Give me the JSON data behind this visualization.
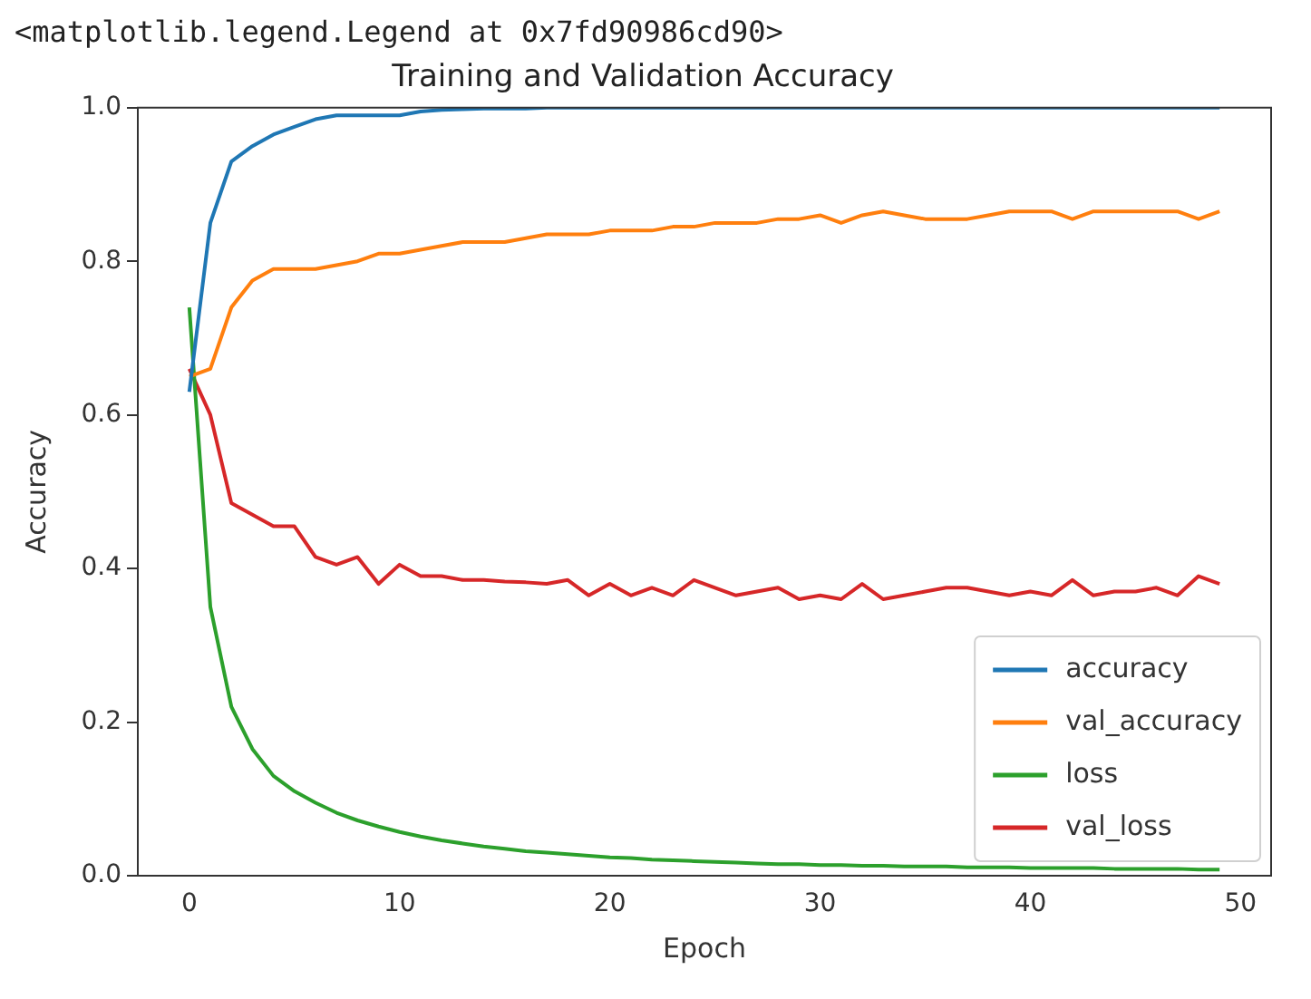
{
  "chart_data": {
    "type": "line",
    "title": "Training and Validation Accuracy",
    "xlabel": "Epoch",
    "ylabel": "Accuracy",
    "annotations": [
      "<matplotlib.legend.Legend at 0x7fd90986cd90>"
    ],
    "x": [
      0,
      1,
      2,
      3,
      4,
      5,
      6,
      7,
      8,
      9,
      10,
      11,
      12,
      13,
      14,
      15,
      16,
      17,
      18,
      19,
      20,
      21,
      22,
      23,
      24,
      25,
      26,
      27,
      28,
      29,
      30,
      31,
      32,
      33,
      34,
      35,
      36,
      37,
      38,
      39,
      40,
      41,
      42,
      43,
      44,
      45,
      46,
      47,
      48,
      49
    ],
    "series": [
      {
        "name": "accuracy",
        "color": "#1f77b4",
        "values": [
          0.63,
          0.85,
          0.93,
          0.95,
          0.965,
          0.975,
          0.985,
          0.99,
          0.99,
          0.99,
          0.99,
          0.995,
          0.997,
          0.998,
          0.999,
          0.999,
          0.999,
          1.0,
          1.0,
          1.0,
          1.0,
          1.0,
          1.0,
          1.0,
          1.0,
          1.0,
          1.0,
          1.0,
          1.0,
          1.0,
          1.0,
          1.0,
          1.0,
          1.0,
          1.0,
          1.0,
          1.0,
          1.0,
          1.0,
          1.0,
          1.0,
          1.0,
          1.0,
          1.0,
          1.0,
          1.0,
          1.0,
          1.0,
          1.0,
          1.0
        ]
      },
      {
        "name": "val_accuracy",
        "color": "#ff7f0e",
        "values": [
          0.65,
          0.66,
          0.74,
          0.775,
          0.79,
          0.79,
          0.79,
          0.795,
          0.8,
          0.81,
          0.81,
          0.815,
          0.82,
          0.825,
          0.825,
          0.825,
          0.83,
          0.835,
          0.835,
          0.835,
          0.84,
          0.84,
          0.84,
          0.845,
          0.845,
          0.85,
          0.85,
          0.85,
          0.855,
          0.855,
          0.86,
          0.85,
          0.86,
          0.865,
          0.86,
          0.855,
          0.855,
          0.855,
          0.86,
          0.865,
          0.865,
          0.865,
          0.855,
          0.865,
          0.865,
          0.865,
          0.865,
          0.865,
          0.855,
          0.865
        ]
      },
      {
        "name": "loss",
        "color": "#2ca02c",
        "values": [
          0.74,
          0.35,
          0.22,
          0.165,
          0.13,
          0.11,
          0.095,
          0.082,
          0.072,
          0.064,
          0.057,
          0.051,
          0.046,
          0.042,
          0.038,
          0.035,
          0.032,
          0.03,
          0.028,
          0.026,
          0.024,
          0.023,
          0.021,
          0.02,
          0.019,
          0.018,
          0.017,
          0.016,
          0.015,
          0.015,
          0.014,
          0.014,
          0.013,
          0.013,
          0.012,
          0.012,
          0.012,
          0.011,
          0.011,
          0.011,
          0.01,
          0.01,
          0.01,
          0.01,
          0.009,
          0.009,
          0.009,
          0.009,
          0.008,
          0.008
        ]
      },
      {
        "name": "val_loss",
        "color": "#d62728",
        "values": [
          0.66,
          0.6,
          0.485,
          0.47,
          0.455,
          0.455,
          0.415,
          0.405,
          0.415,
          0.38,
          0.405,
          0.39,
          0.39,
          0.385,
          0.385,
          0.383,
          0.382,
          0.38,
          0.385,
          0.365,
          0.38,
          0.365,
          0.375,
          0.365,
          0.385,
          0.375,
          0.365,
          0.37,
          0.375,
          0.36,
          0.365,
          0.36,
          0.38,
          0.36,
          0.365,
          0.37,
          0.375,
          0.375,
          0.37,
          0.365,
          0.37,
          0.365,
          0.385,
          0.365,
          0.37,
          0.37,
          0.375,
          0.365,
          0.39,
          0.38
        ]
      }
    ],
    "xlim": [
      -2.45,
      51.45
    ],
    "xticks": [
      0,
      10,
      20,
      30,
      40,
      50
    ],
    "ylim": [
      0,
      1
    ],
    "yticks": [
      {
        "value": 0,
        "label": "0.0"
      },
      0.2,
      0.4,
      0.6,
      0.8,
      {
        "value": 1,
        "label": "1.0"
      }
    ],
    "legend": "bottom right",
    "grid": false,
    "marker": "none",
    "line_style": "solid"
  }
}
